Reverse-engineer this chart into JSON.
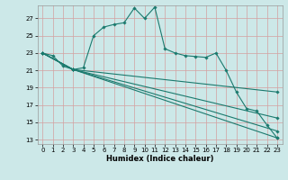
{
  "xlabel": "Humidex (Indice chaleur)",
  "background_color": "#cce8e8",
  "grid_color": "#d4a0a0",
  "line_color": "#1a7a6e",
  "xlim": [
    -0.5,
    23.5
  ],
  "ylim": [
    12.5,
    28.5
  ],
  "yticks": [
    13,
    15,
    17,
    19,
    21,
    23,
    25,
    27
  ],
  "xticks": [
    0,
    1,
    2,
    3,
    4,
    5,
    6,
    7,
    8,
    9,
    10,
    11,
    12,
    13,
    14,
    15,
    16,
    17,
    18,
    19,
    20,
    21,
    22,
    23
  ],
  "lines": [
    {
      "x": [
        0,
        1,
        2,
        3,
        4,
        5,
        6,
        7,
        8,
        9,
        10,
        11,
        12,
        13,
        14,
        15,
        16,
        17,
        18,
        19,
        20,
        21,
        22,
        23
      ],
      "y": [
        23.0,
        22.7,
        21.5,
        21.1,
        21.3,
        25.0,
        26.0,
        26.3,
        26.5,
        28.2,
        27.0,
        28.3,
        23.5,
        23.0,
        22.7,
        22.6,
        22.5,
        23.0,
        21.0,
        18.5,
        16.6,
        16.3,
        14.7,
        13.2
      ]
    },
    {
      "x": [
        0,
        3,
        23
      ],
      "y": [
        23.0,
        21.1,
        13.2
      ]
    },
    {
      "x": [
        0,
        3,
        23
      ],
      "y": [
        23.0,
        21.1,
        14.0
      ]
    },
    {
      "x": [
        0,
        3,
        23
      ],
      "y": [
        23.0,
        21.1,
        15.5
      ]
    },
    {
      "x": [
        0,
        3,
        23
      ],
      "y": [
        23.0,
        21.1,
        18.5
      ]
    }
  ]
}
